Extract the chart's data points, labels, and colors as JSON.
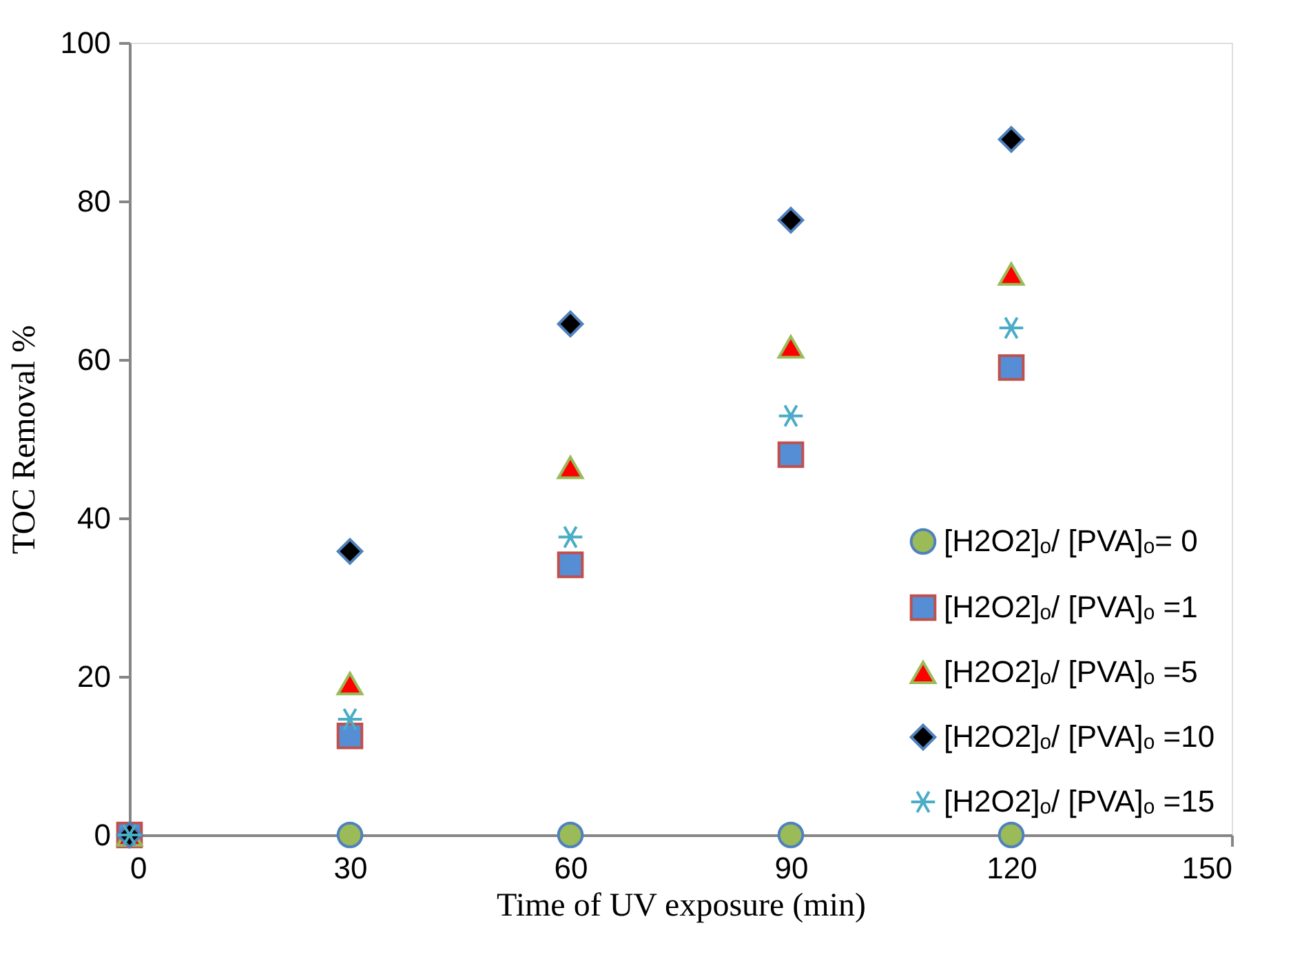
{
  "chart_data": {
    "type": "scatter",
    "xlabel": "Time of UV exposure (min)",
    "ylabel": "TOC Removal %",
    "x": [
      0,
      30,
      60,
      90,
      120
    ],
    "series": [
      {
        "name": "[H2O2]ₒ/ [PVA]ₒ= 0",
        "color": "#9bbb59",
        "marker": "circle",
        "values": [
          null,
          0,
          0,
          0,
          0
        ]
      },
      {
        "name": "[H2O2]ₒ/ [PVA]ₒ =1",
        "color": "#558ed5",
        "marker": "square",
        "values": [
          0,
          12.5,
          34.1,
          48.0,
          59.0
        ]
      },
      {
        "name": "[H2O2]ₒ/ [PVA]ₒ =5",
        "color": "#ff0000",
        "marker": "triangle",
        "values": [
          0,
          19.1,
          46.4,
          61.6,
          70.8
        ]
      },
      {
        "name": "[H2O2]ₒ/ [PVA]ₒ =10",
        "color": "#000000",
        "marker": "diamond",
        "values": [
          0,
          35.8,
          64.5,
          77.6,
          87.8
        ]
      },
      {
        "name": "[H2O2]ₒ/ [PVA]ₒ =15",
        "color": "#4bacc6",
        "marker": "cross",
        "values": [
          0,
          14.6,
          37.6,
          52.9,
          64.0
        ]
      }
    ],
    "xlim": [
      0,
      150
    ],
    "xticks": [
      0,
      30,
      60,
      90,
      120,
      150
    ],
    "ylim": [
      0,
      100
    ],
    "yticks": [
      0,
      20,
      40,
      60,
      80,
      100
    ],
    "grid": false,
    "legend": "bottom right"
  }
}
